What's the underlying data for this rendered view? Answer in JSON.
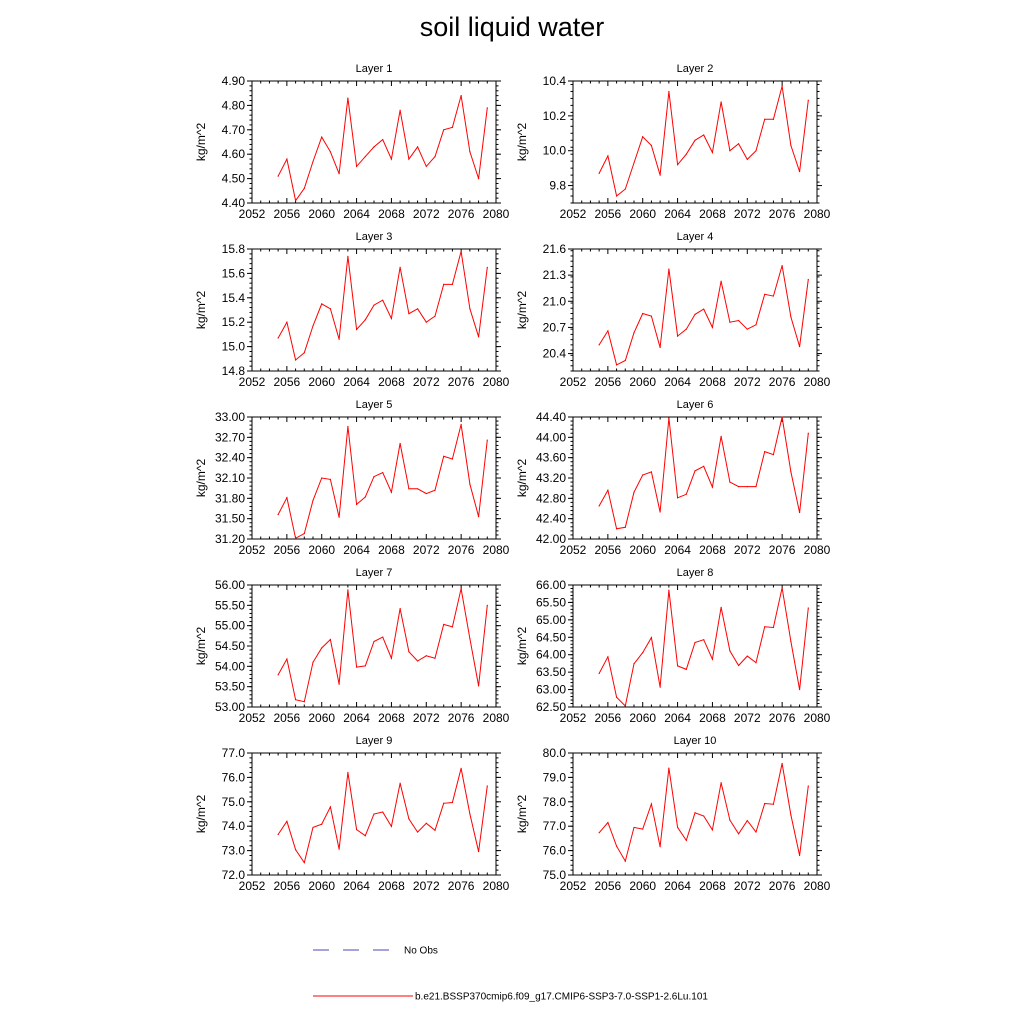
{
  "title": "soil liquid water",
  "legend": {
    "items": [
      {
        "label": "No Obs",
        "color": "#4a4ab0",
        "style": "dashed"
      },
      {
        "label": "b.e21.BSSP370cmip6.f09_g17.CMIP6-SSP3-7.0-SSP1-2.6Lu.101",
        "color": "#ff0000",
        "style": "solid"
      }
    ]
  },
  "chart_data": [
    {
      "type": "line",
      "title": "Layer 1",
      "xlabel": "",
      "ylabel": "kg/m^2",
      "xlim": [
        2052,
        2080
      ],
      "xticks": [
        "2052",
        "2056",
        "2060",
        "2064",
        "2068",
        "2072",
        "2076",
        "2080"
      ],
      "ylim": [
        4.4,
        4.9
      ],
      "yticks": [
        "4.40",
        "4.50",
        "4.60",
        "4.70",
        "4.80",
        "4.90"
      ],
      "grid": false,
      "x": [
        2055,
        2056,
        2057,
        2058,
        2059,
        2060,
        2061,
        2062,
        2063,
        2064,
        2065,
        2066,
        2067,
        2068,
        2069,
        2070,
        2071,
        2072,
        2073,
        2074,
        2075,
        2076,
        2077,
        2078,
        2079
      ],
      "series": [
        {
          "name": "b.e21.BSSP370cmip6.f09_g17.CMIP6-SSP3-7.0-SSP1-2.6Lu.101",
          "color": "#ff0000",
          "values": [
            4.51,
            4.58,
            4.41,
            4.46,
            4.57,
            4.67,
            4.61,
            4.52,
            4.83,
            4.55,
            4.59,
            4.63,
            4.66,
            4.58,
            4.78,
            4.58,
            4.63,
            4.55,
            4.59,
            4.7,
            4.71,
            4.84,
            4.61,
            4.5,
            4.79
          ]
        }
      ]
    },
    {
      "type": "line",
      "title": "Layer 2",
      "xlabel": "",
      "ylabel": "kg/m^2",
      "xlim": [
        2052,
        2080
      ],
      "xticks": [
        "2052",
        "2056",
        "2060",
        "2064",
        "2068",
        "2072",
        "2076",
        "2080"
      ],
      "ylim": [
        9.7,
        10.4
      ],
      "yticks": [
        "9.8",
        "10.0",
        "10.2",
        "10.4"
      ],
      "grid": false,
      "x": [
        2055,
        2056,
        2057,
        2058,
        2059,
        2060,
        2061,
        2062,
        2063,
        2064,
        2065,
        2066,
        2067,
        2068,
        2069,
        2070,
        2071,
        2072,
        2073,
        2074,
        2075,
        2076,
        2077,
        2078,
        2079
      ],
      "series": [
        {
          "name": "b.e21.BSSP370cmip6.f09_g17.CMIP6-SSP3-7.0-SSP1-2.6Lu.101",
          "color": "#ff0000",
          "values": [
            9.87,
            9.97,
            9.74,
            9.78,
            9.93,
            10.08,
            10.03,
            9.86,
            10.34,
            9.92,
            9.98,
            10.06,
            10.09,
            9.99,
            10.28,
            10.0,
            10.04,
            9.95,
            10.0,
            10.18,
            10.18,
            10.37,
            10.03,
            9.88,
            10.29
          ]
        }
      ]
    },
    {
      "type": "line",
      "title": "Layer 3",
      "xlabel": "",
      "ylabel": "kg/m^2",
      "xlim": [
        2052,
        2080
      ],
      "xticks": [
        "2052",
        "2056",
        "2060",
        "2064",
        "2068",
        "2072",
        "2076",
        "2080"
      ],
      "ylim": [
        14.8,
        15.8
      ],
      "yticks": [
        "14.8",
        "15.0",
        "15.2",
        "15.4",
        "15.6",
        "15.8"
      ],
      "grid": false,
      "x": [
        2055,
        2056,
        2057,
        2058,
        2059,
        2060,
        2061,
        2062,
        2063,
        2064,
        2065,
        2066,
        2067,
        2068,
        2069,
        2070,
        2071,
        2072,
        2073,
        2074,
        2075,
        2076,
        2077,
        2078,
        2079
      ],
      "series": [
        {
          "name": "b.e21.BSSP370cmip6.f09_g17.CMIP6-SSP3-7.0-SSP1-2.6Lu.101",
          "color": "#ff0000",
          "values": [
            15.07,
            15.2,
            14.89,
            14.95,
            15.17,
            15.35,
            15.31,
            15.06,
            15.74,
            15.14,
            15.22,
            15.34,
            15.38,
            15.23,
            15.65,
            15.27,
            15.31,
            15.2,
            15.25,
            15.51,
            15.51,
            15.78,
            15.31,
            15.08,
            15.65
          ]
        }
      ]
    },
    {
      "type": "line",
      "title": "Layer 4",
      "xlabel": "",
      "ylabel": "kg/m^2",
      "xlim": [
        2052,
        2080
      ],
      "xticks": [
        "2052",
        "2056",
        "2060",
        "2064",
        "2068",
        "2072",
        "2076",
        "2080"
      ],
      "ylim": [
        20.2,
        21.6
      ],
      "yticks": [
        "20.4",
        "20.7",
        "21.0",
        "21.3",
        "21.6"
      ],
      "grid": false,
      "x": [
        2055,
        2056,
        2057,
        2058,
        2059,
        2060,
        2061,
        2062,
        2063,
        2064,
        2065,
        2066,
        2067,
        2068,
        2069,
        2070,
        2071,
        2072,
        2073,
        2074,
        2075,
        2076,
        2077,
        2078,
        2079
      ],
      "series": [
        {
          "name": "b.e21.BSSP370cmip6.f09_g17.CMIP6-SSP3-7.0-SSP1-2.6Lu.101",
          "color": "#ff0000",
          "values": [
            20.5,
            20.66,
            20.27,
            20.32,
            20.64,
            20.86,
            20.83,
            20.47,
            21.37,
            20.6,
            20.68,
            20.85,
            20.91,
            20.7,
            21.23,
            20.76,
            20.78,
            20.68,
            20.73,
            21.08,
            21.06,
            21.41,
            20.82,
            20.48,
            21.25
          ]
        }
      ]
    },
    {
      "type": "line",
      "title": "Layer 5",
      "xlabel": "",
      "ylabel": "kg/m^2",
      "xlim": [
        2052,
        2080
      ],
      "xticks": [
        "2052",
        "2056",
        "2060",
        "2064",
        "2068",
        "2072",
        "2076",
        "2080"
      ],
      "ylim": [
        31.2,
        33.0
      ],
      "yticks": [
        "31.20",
        "31.50",
        "31.80",
        "32.10",
        "32.40",
        "32.70",
        "33.00"
      ],
      "grid": false,
      "x": [
        2055,
        2056,
        2057,
        2058,
        2059,
        2060,
        2061,
        2062,
        2063,
        2064,
        2065,
        2066,
        2067,
        2068,
        2069,
        2070,
        2071,
        2072,
        2073,
        2074,
        2075,
        2076,
        2077,
        2078,
        2079
      ],
      "series": [
        {
          "name": "b.e21.BSSP370cmip6.f09_g17.CMIP6-SSP3-7.0-SSP1-2.6Lu.101",
          "color": "#ff0000",
          "values": [
            31.56,
            31.81,
            31.21,
            31.28,
            31.77,
            32.1,
            32.08,
            31.52,
            32.86,
            31.71,
            31.82,
            32.12,
            32.18,
            31.89,
            32.61,
            31.94,
            31.94,
            31.87,
            31.92,
            32.42,
            32.38,
            32.89,
            32.01,
            31.53,
            32.66
          ]
        }
      ]
    },
    {
      "type": "line",
      "title": "Layer 6",
      "xlabel": "",
      "ylabel": "kg/m^2",
      "xlim": [
        2052,
        2080
      ],
      "xticks": [
        "2052",
        "2056",
        "2060",
        "2064",
        "2068",
        "2072",
        "2076",
        "2080"
      ],
      "ylim": [
        42.0,
        44.4
      ],
      "yticks": [
        "42.00",
        "42.40",
        "42.80",
        "43.20",
        "43.60",
        "44.00",
        "44.40"
      ],
      "grid": false,
      "x": [
        2055,
        2056,
        2057,
        2058,
        2059,
        2060,
        2061,
        2062,
        2063,
        2064,
        2065,
        2066,
        2067,
        2068,
        2069,
        2070,
        2071,
        2072,
        2073,
        2074,
        2075,
        2076,
        2077,
        2078,
        2079
      ],
      "series": [
        {
          "name": "b.e21.BSSP370cmip6.f09_g17.CMIP6-SSP3-7.0-SSP1-2.6Lu.101",
          "color": "#ff0000",
          "values": [
            42.65,
            42.96,
            42.2,
            42.23,
            42.92,
            43.26,
            43.32,
            42.53,
            44.38,
            42.81,
            42.88,
            43.34,
            43.43,
            43.02,
            44.02,
            43.12,
            43.03,
            43.03,
            43.03,
            43.72,
            43.66,
            44.4,
            43.32,
            42.52,
            44.08
          ]
        }
      ]
    },
    {
      "type": "line",
      "title": "Layer 7",
      "xlabel": "",
      "ylabel": "kg/m^2",
      "xlim": [
        2052,
        2080
      ],
      "xticks": [
        "2052",
        "2056",
        "2060",
        "2064",
        "2068",
        "2072",
        "2076",
        "2080"
      ],
      "ylim": [
        53.0,
        56.0
      ],
      "yticks": [
        "53.00",
        "53.50",
        "54.00",
        "54.50",
        "55.00",
        "55.50",
        "56.00"
      ],
      "grid": false,
      "x": [
        2055,
        2056,
        2057,
        2058,
        2059,
        2060,
        2061,
        2062,
        2063,
        2064,
        2065,
        2066,
        2067,
        2068,
        2069,
        2070,
        2071,
        2072,
        2073,
        2074,
        2075,
        2076,
        2077,
        2078,
        2079
      ],
      "series": [
        {
          "name": "b.e21.BSSP370cmip6.f09_g17.CMIP6-SSP3-7.0-SSP1-2.6Lu.101",
          "color": "#ff0000",
          "values": [
            53.79,
            54.18,
            53.18,
            53.13,
            54.1,
            54.45,
            54.66,
            53.56,
            55.88,
            53.98,
            54.01,
            54.61,
            54.72,
            54.2,
            55.42,
            54.36,
            54.13,
            54.26,
            54.2,
            55.03,
            54.97,
            55.91,
            54.68,
            53.52,
            55.5
          ]
        }
      ]
    },
    {
      "type": "line",
      "title": "Layer 8",
      "xlabel": "",
      "ylabel": "kg/m^2",
      "xlim": [
        2052,
        2080
      ],
      "xticks": [
        "2052",
        "2056",
        "2060",
        "2064",
        "2068",
        "2072",
        "2076",
        "2080"
      ],
      "ylim": [
        62.5,
        66.0
      ],
      "yticks": [
        "62.50",
        "63.00",
        "63.50",
        "64.00",
        "64.50",
        "65.00",
        "65.50",
        "66.00"
      ],
      "grid": false,
      "x": [
        2055,
        2056,
        2057,
        2058,
        2059,
        2060,
        2061,
        2062,
        2063,
        2064,
        2065,
        2066,
        2067,
        2068,
        2069,
        2070,
        2071,
        2072,
        2073,
        2074,
        2075,
        2076,
        2077,
        2078,
        2079
      ],
      "series": [
        {
          "name": "b.e21.BSSP370cmip6.f09_g17.CMIP6-SSP3-7.0-SSP1-2.6Lu.101",
          "color": "#ff0000",
          "values": [
            63.46,
            63.94,
            62.78,
            62.53,
            63.74,
            64.06,
            64.49,
            63.07,
            65.85,
            63.68,
            63.58,
            64.35,
            64.43,
            63.87,
            65.36,
            64.11,
            63.69,
            63.96,
            63.77,
            64.8,
            64.78,
            65.92,
            64.38,
            63.0,
            65.34
          ]
        }
      ]
    },
    {
      "type": "line",
      "title": "Layer 9",
      "xlabel": "",
      "ylabel": "kg/m^2",
      "xlim": [
        2052,
        2080
      ],
      "xticks": [
        "2052",
        "2056",
        "2060",
        "2064",
        "2068",
        "2072",
        "2076",
        "2080"
      ],
      "ylim": [
        72.0,
        77.0
      ],
      "yticks": [
        "72.0",
        "73.0",
        "74.0",
        "75.0",
        "76.0",
        "77.0"
      ],
      "grid": false,
      "x": [
        2055,
        2056,
        2057,
        2058,
        2059,
        2060,
        2061,
        2062,
        2063,
        2064,
        2065,
        2066,
        2067,
        2068,
        2069,
        2070,
        2071,
        2072,
        2073,
        2074,
        2075,
        2076,
        2077,
        2078,
        2079
      ],
      "series": [
        {
          "name": "b.e21.BSSP370cmip6.f09_g17.CMIP6-SSP3-7.0-SSP1-2.6Lu.101",
          "color": "#ff0000",
          "values": [
            73.66,
            74.2,
            73.04,
            72.51,
            73.95,
            74.08,
            74.79,
            73.06,
            76.2,
            73.86,
            73.61,
            74.5,
            74.58,
            73.99,
            75.76,
            74.3,
            73.76,
            74.12,
            73.83,
            74.94,
            74.97,
            76.37,
            74.5,
            72.96,
            75.65
          ]
        }
      ]
    },
    {
      "type": "line",
      "title": "Layer 10",
      "xlabel": "",
      "ylabel": "kg/m^2",
      "xlim": [
        2052,
        2080
      ],
      "xticks": [
        "2052",
        "2056",
        "2060",
        "2064",
        "2068",
        "2072",
        "2076",
        "2080"
      ],
      "ylim": [
        75.0,
        80.0
      ],
      "yticks": [
        "75.0",
        "76.0",
        "77.0",
        "78.0",
        "79.0",
        "80.0"
      ],
      "grid": false,
      "x": [
        2055,
        2056,
        2057,
        2058,
        2059,
        2060,
        2061,
        2062,
        2063,
        2064,
        2065,
        2066,
        2067,
        2068,
        2069,
        2070,
        2071,
        2072,
        2073,
        2074,
        2075,
        2076,
        2077,
        2078,
        2079
      ],
      "series": [
        {
          "name": "b.e21.BSSP370cmip6.f09_g17.CMIP6-SSP3-7.0-SSP1-2.6Lu.101",
          "color": "#ff0000",
          "values": [
            76.73,
            77.15,
            76.18,
            75.57,
            76.95,
            76.88,
            77.91,
            76.16,
            79.38,
            76.95,
            76.42,
            77.55,
            77.42,
            76.85,
            78.78,
            77.25,
            76.69,
            77.23,
            76.76,
            77.93,
            77.9,
            79.57,
            77.46,
            75.8,
            78.65
          ]
        }
      ]
    }
  ]
}
